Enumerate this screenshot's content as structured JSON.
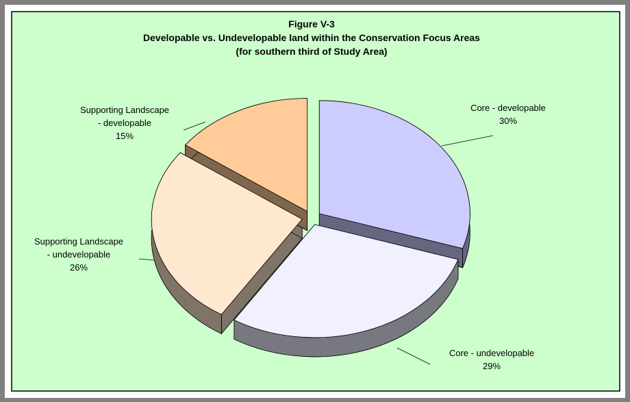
{
  "chart_data": {
    "type": "pie3d",
    "title": [
      "Figure V-3",
      "Developable vs. Undevelopable land within the Conservation Focus Areas",
      "(for southern third of Study Area)"
    ],
    "categories": [
      "Core - developable",
      "Core - undevelopable",
      "Supporting Landscape - undevelopable",
      "Supporting Landscape - developable"
    ],
    "values": [
      30,
      29,
      26,
      15
    ],
    "value_labels": [
      "30%",
      "29%",
      "26%",
      "15%"
    ],
    "colors": [
      "#ccccff",
      "#f0f0ff",
      "#ffe8d0",
      "#ffcc99"
    ]
  }
}
